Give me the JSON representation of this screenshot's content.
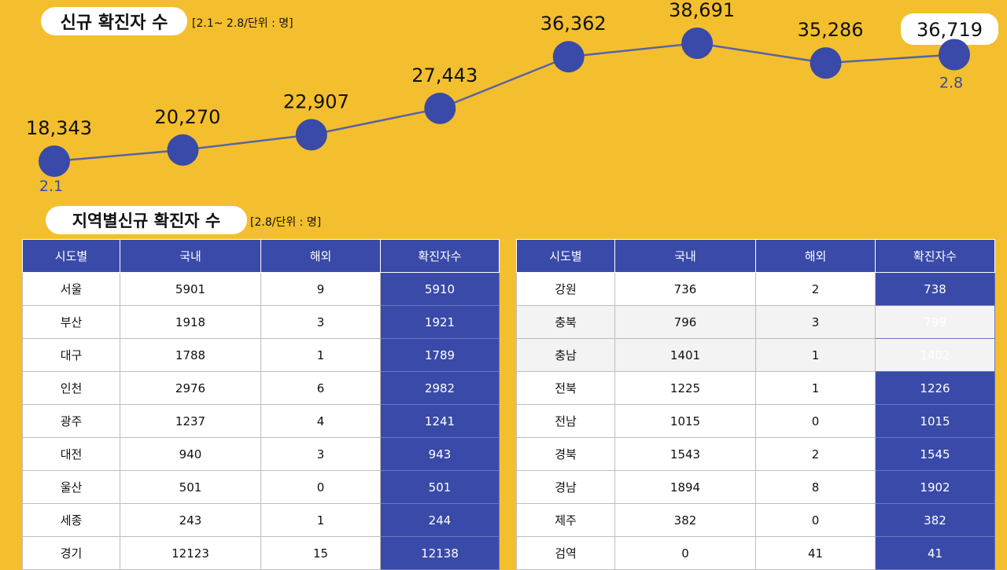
{
  "header": {
    "title": "신규 확진자 수",
    "note": "[2.1~ 2.8/단위 : 명]"
  },
  "chart_data": {
    "type": "line",
    "x": [
      "2.1",
      "",
      "",
      "",
      "",
      "",
      "",
      "2.8"
    ],
    "values": [
      18343,
      20270,
      22907,
      27443,
      36362,
      38691,
      35286,
      36719
    ],
    "value_labels": [
      "18,343",
      "20,270",
      "22,907",
      "27,443",
      "36,362",
      "38,691",
      "35,286",
      "36,719"
    ],
    "first_x_label": "2.1",
    "last_x_label": "2.8",
    "highlighted_last": true,
    "grid": false,
    "colors": {
      "marker": "#3a4aa8",
      "line": "#5a62a8",
      "xlabel": "#3a4aa8"
    }
  },
  "regional": {
    "title": "지역별신규 확진자 수",
    "note": "[2.8/단위 : 명]",
    "columns": [
      "시도별",
      "국내",
      "해외",
      "확진자수"
    ],
    "left_rows": [
      [
        "서울",
        "5901",
        "9",
        "5910"
      ],
      [
        "부산",
        "1918",
        "3",
        "1921"
      ],
      [
        "대구",
        "1788",
        "1",
        "1789"
      ],
      [
        "인천",
        "2976",
        "6",
        "2982"
      ],
      [
        "광주",
        "1237",
        "4",
        "1241"
      ],
      [
        "대전",
        "940",
        "3",
        "943"
      ],
      [
        "울산",
        "501",
        "0",
        "501"
      ],
      [
        "세종",
        "243",
        "1",
        "244"
      ],
      [
        "경기",
        "12123",
        "15",
        "12138"
      ]
    ],
    "right_rows": [
      [
        "강원",
        "736",
        "2",
        "738"
      ],
      [
        "충북",
        "796",
        "3",
        "799"
      ],
      [
        "충남",
        "1401",
        "1",
        "1402"
      ],
      [
        "전북",
        "1225",
        "1",
        "1226"
      ],
      [
        "전남",
        "1015",
        "0",
        "1015"
      ],
      [
        "경북",
        "1543",
        "2",
        "1545"
      ],
      [
        "경남",
        "1894",
        "8",
        "1902"
      ],
      [
        "제주",
        "382",
        "0",
        "382"
      ],
      [
        "검역",
        "0",
        "41",
        "41"
      ]
    ]
  },
  "colors": {
    "background": "#f4bf2e",
    "accent": "#3a4aa8"
  }
}
